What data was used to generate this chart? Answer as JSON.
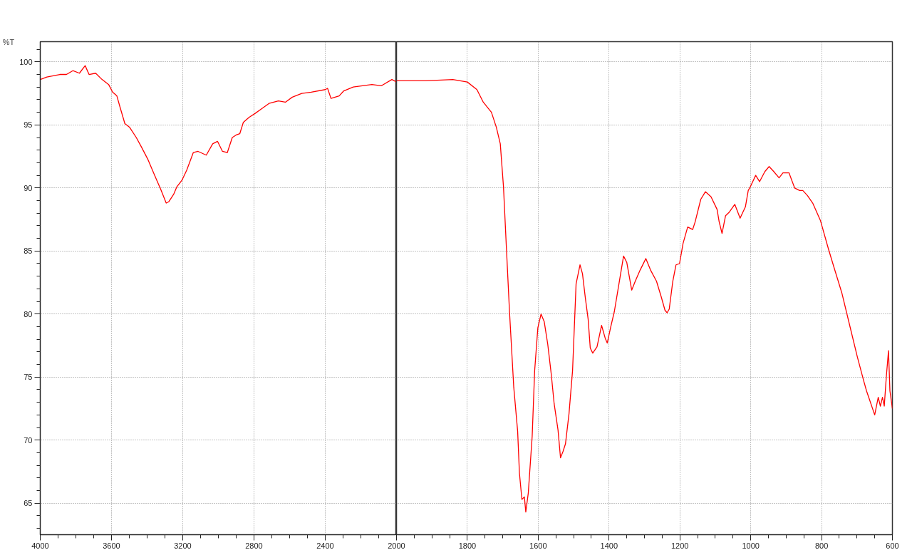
{
  "chart_data": [
    {
      "type": "line",
      "ylabel": "%T",
      "grid": true,
      "xlim": [
        4000,
        2000
      ],
      "ylim": [
        62.5,
        101.6
      ],
      "xticks": [
        4000,
        3600,
        3200,
        2800,
        2400,
        {
          "value": 2000,
          "label": null
        }
      ],
      "yticks": [
        65,
        70,
        75,
        80,
        85,
        90,
        95,
        100
      ],
      "x": [
        4000,
        3963,
        3927,
        3890,
        3853,
        3817,
        3780,
        3748,
        3726,
        3689,
        3653,
        3616,
        3594,
        3570,
        3552,
        3525,
        3498,
        3461,
        3434,
        3397,
        3361,
        3324,
        3293,
        3279,
        3251,
        3233,
        3205,
        3178,
        3141,
        3114,
        3068,
        3032,
        3005,
        2977,
        2950,
        2922,
        2900,
        2880,
        2860,
        2828,
        2795,
        2755,
        2716,
        2663,
        2624,
        2585,
        2532,
        2479,
        2400,
        2387,
        2368,
        2322,
        2296,
        2243,
        2191,
        2138,
        2086,
        2026,
        2000
      ],
      "series": [
        {
          "color": "#ff0000",
          "values": [
            98.6,
            98.8,
            98.9,
            99.0,
            99.0,
            99.3,
            99.1,
            99.7,
            99.0,
            99.1,
            98.6,
            98.2,
            97.6,
            97.3,
            96.4,
            95.1,
            94.8,
            94.0,
            93.3,
            92.3,
            91.1,
            89.9,
            88.8,
            88.9,
            89.5,
            90.1,
            90.6,
            91.4,
            92.8,
            92.9,
            92.6,
            93.5,
            93.7,
            92.9,
            92.8,
            94.0,
            94.2,
            94.3,
            95.2,
            95.6,
            95.9,
            96.3,
            96.7,
            96.9,
            96.8,
            97.2,
            97.5,
            97.6,
            97.8,
            97.9,
            97.1,
            97.3,
            97.7,
            98.0,
            98.1,
            98.2,
            98.1,
            98.6,
            98.4
          ]
        }
      ]
    },
    {
      "type": "line",
      "grid": true,
      "tick_labels": "x",
      "xlim": [
        2000,
        600
      ],
      "ylim": [
        62.5,
        101.6
      ],
      "xticks": [
        2000,
        1800,
        1600,
        1400,
        1200,
        1000,
        800,
        600
      ],
      "yticks": [
        65,
        70,
        75,
        80,
        85,
        90,
        95,
        100
      ],
      "x": [
        2000,
        1973,
        1918,
        1841,
        1800,
        1773,
        1755,
        1732,
        1718,
        1707,
        1698,
        1690,
        1681,
        1669,
        1658,
        1653,
        1646,
        1639,
        1635,
        1628,
        1617,
        1610,
        1601,
        1592,
        1583,
        1573,
        1563,
        1555,
        1544,
        1537,
        1530,
        1523,
        1513,
        1503,
        1493,
        1482,
        1475,
        1467,
        1459,
        1453,
        1446,
        1434,
        1421,
        1411,
        1405,
        1395,
        1385,
        1372,
        1359,
        1350,
        1336,
        1326,
        1312,
        1296,
        1283,
        1266,
        1253,
        1242,
        1236,
        1230,
        1220,
        1211,
        1201,
        1191,
        1178,
        1164,
        1157,
        1141,
        1128,
        1112,
        1095,
        1089,
        1081,
        1071,
        1060,
        1045,
        1030,
        1015,
        1007,
        1001,
        986,
        975,
        960,
        948,
        935,
        920,
        909,
        892,
        876,
        862,
        853,
        840,
        825,
        803,
        781,
        766,
        743,
        718,
        699,
        681,
        673,
        662,
        650,
        640,
        634,
        628,
        623,
        617,
        611,
        607,
        600
      ],
      "series": [
        {
          "color": "#ff0000",
          "values": [
            98.5,
            98.5,
            98.5,
            98.6,
            98.4,
            97.8,
            96.8,
            96.0,
            94.8,
            93.5,
            90.1,
            85.4,
            80.2,
            74.2,
            70.7,
            67.4,
            65.3,
            65.5,
            64.3,
            65.8,
            70.3,
            75.5,
            78.9,
            80.0,
            79.4,
            77.6,
            75.2,
            72.9,
            70.8,
            68.6,
            69.1,
            69.7,
            72.1,
            75.5,
            82.4,
            83.9,
            83.2,
            81.3,
            79.6,
            77.3,
            76.9,
            77.4,
            79.1,
            78.1,
            77.7,
            79.0,
            80.2,
            82.4,
            84.6,
            84.1,
            81.9,
            82.6,
            83.5,
            84.4,
            83.5,
            82.6,
            81.4,
            80.3,
            80.1,
            80.4,
            82.6,
            83.9,
            84.0,
            85.6,
            86.9,
            86.7,
            87.3,
            89.1,
            89.7,
            89.3,
            88.3,
            87.3,
            86.4,
            87.8,
            88.1,
            88.7,
            87.6,
            88.5,
            89.8,
            90.1,
            91.0,
            90.5,
            91.3,
            91.7,
            91.3,
            90.8,
            91.2,
            91.2,
            90.0,
            89.8,
            89.8,
            89.4,
            88.8,
            87.4,
            85.2,
            83.8,
            81.7,
            78.8,
            76.6,
            74.7,
            73.9,
            73.0,
            72.0,
            73.4,
            72.7,
            73.4,
            72.7,
            75.1,
            77.1,
            73.9,
            72.5
          ]
        }
      ]
    }
  ]
}
